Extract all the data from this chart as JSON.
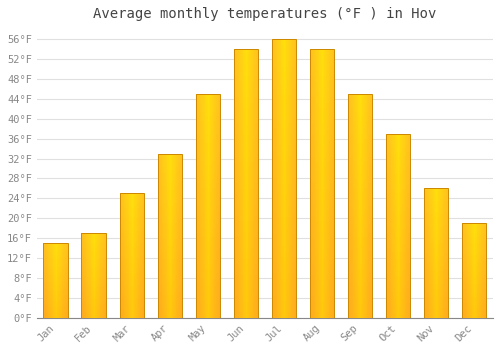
{
  "title": "Average monthly temperatures (°F ) in Hov",
  "months": [
    "Jan",
    "Feb",
    "Mar",
    "Apr",
    "May",
    "Jun",
    "Jul",
    "Aug",
    "Sep",
    "Oct",
    "Nov",
    "Dec"
  ],
  "values": [
    15,
    17,
    25,
    33,
    45,
    54,
    56,
    54,
    45,
    37,
    26,
    19
  ],
  "bar_color_center": "#FFD04A",
  "bar_color_edge": "#F5A300",
  "bar_border_color": "#CC8800",
  "ylim": [
    0,
    58
  ],
  "yticks": [
    0,
    4,
    8,
    12,
    16,
    20,
    24,
    28,
    32,
    36,
    40,
    44,
    48,
    52,
    56
  ],
  "ytick_labels": [
    "0°F",
    "4°F",
    "8°F",
    "12°F",
    "16°F",
    "20°F",
    "24°F",
    "28°F",
    "32°F",
    "36°F",
    "40°F",
    "44°F",
    "48°F",
    "52°F",
    "56°F"
  ],
  "bg_color": "#FFFFFF",
  "grid_color": "#E0E0E0",
  "tick_color": "#888888",
  "title_fontsize": 10,
  "tick_fontsize": 7.5,
  "font_family": "monospace"
}
